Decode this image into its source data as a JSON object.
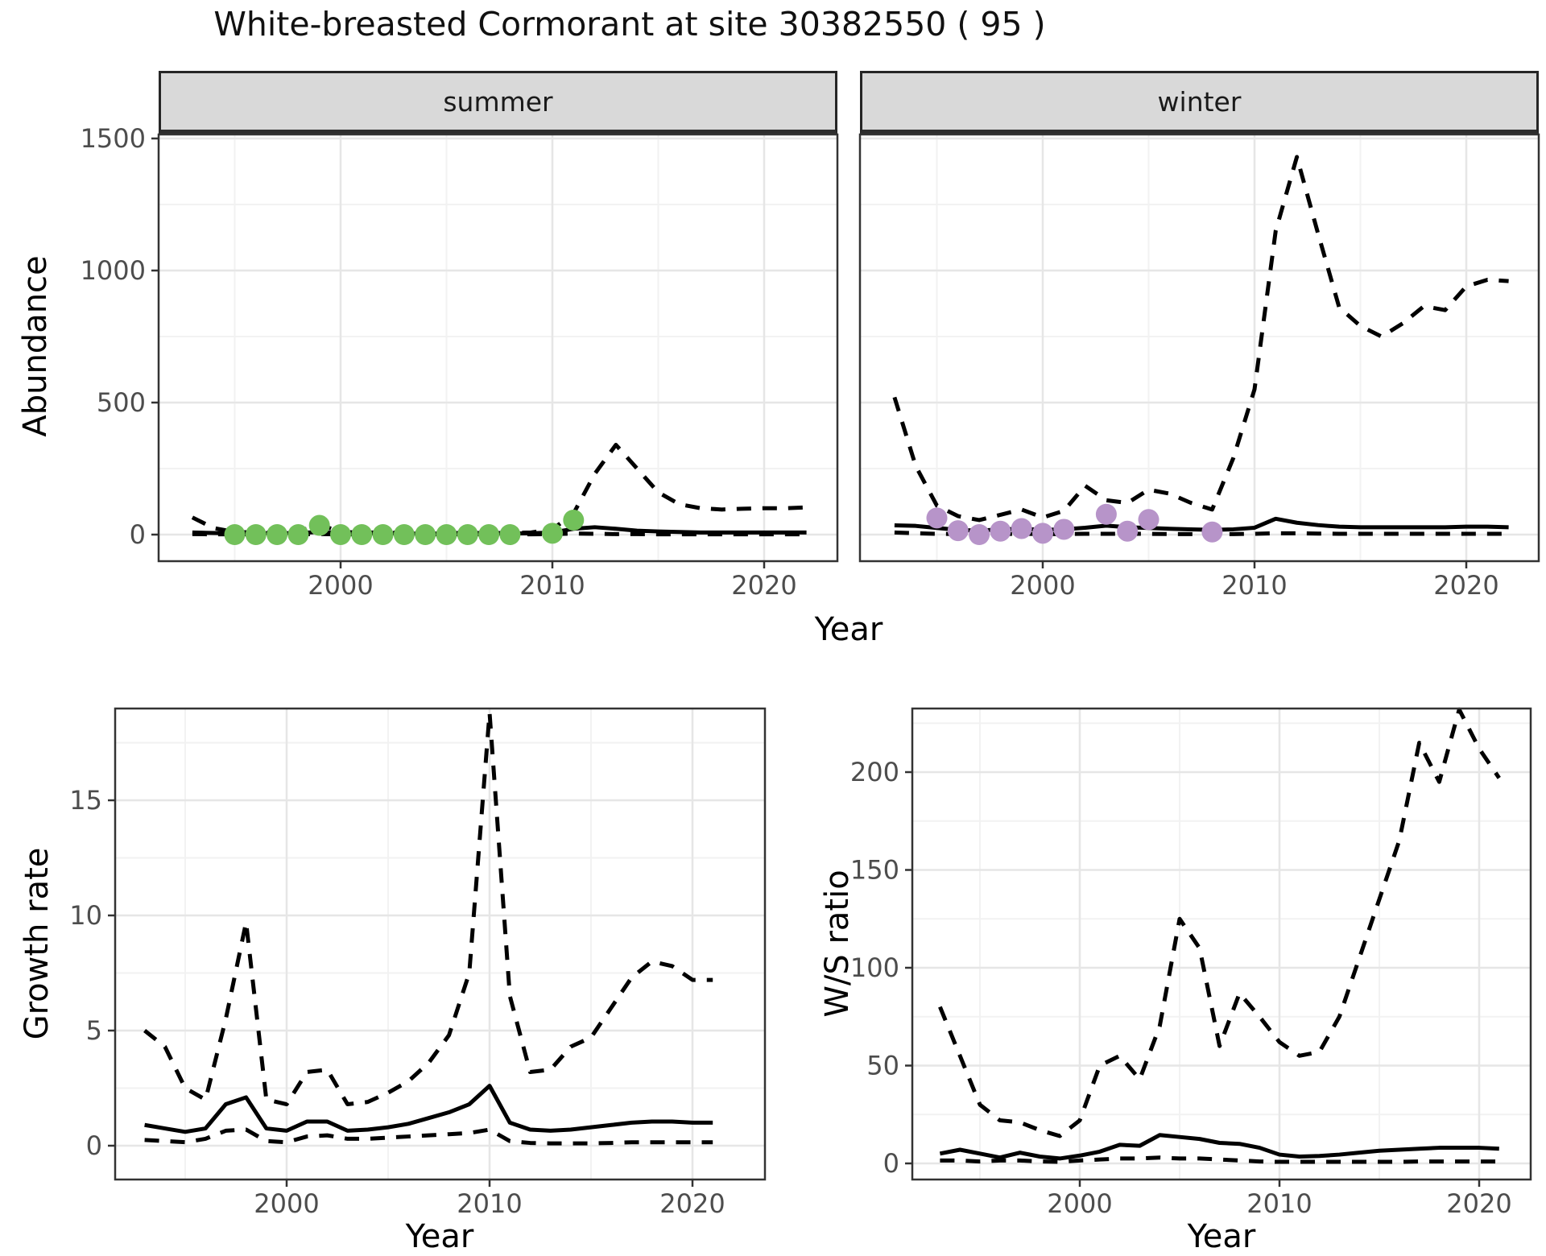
{
  "header": {
    "title": "White-breasted Cormorant at site 30382550 ( 95 )"
  },
  "colors": {
    "summer_point": "#72c05a",
    "winter_point": "#b794c9",
    "line": "#000000",
    "strip_bg": "#d9d9d9",
    "panel_border": "#333333",
    "grid_major": "#e6e6e6",
    "grid_minor": "#f2f2f2",
    "tick_label": "#4d4d4d"
  },
  "chart_data": [
    {
      "type": "line",
      "facet": "summer",
      "ylabel": "Abundance",
      "xlabel": "Year",
      "ylim": [
        0,
        1500
      ],
      "y_ticks": [
        0,
        500,
        1000,
        1500
      ],
      "x_ticks": [
        2000,
        2010,
        2020
      ],
      "grid": "on",
      "legend": "none",
      "x": [
        1993,
        1994,
        1995,
        1996,
        1997,
        1998,
        1999,
        2000,
        2001,
        2002,
        2003,
        2004,
        2005,
        2006,
        2007,
        2008,
        2009,
        2010,
        2011,
        2012,
        2013,
        2014,
        2015,
        2016,
        2017,
        2018,
        2019,
        2020,
        2021,
        2022
      ],
      "series": [
        {
          "name": "upper-95ci",
          "style": "dashed",
          "values": [
            65,
            25,
            10,
            8,
            8,
            12,
            38,
            10,
            8,
            8,
            7,
            6,
            6,
            6,
            6,
            6,
            8,
            20,
            80,
            230,
            340,
            250,
            160,
            115,
            100,
            95,
            98,
            100,
            100,
            103
          ]
        },
        {
          "name": "median",
          "style": "solid",
          "values": [
            8,
            6,
            5,
            5,
            5,
            6,
            10,
            5,
            5,
            5,
            4,
            4,
            4,
            4,
            4,
            4,
            5,
            8,
            22,
            28,
            22,
            15,
            12,
            10,
            8,
            8,
            8,
            8,
            8,
            8
          ]
        },
        {
          "name": "lower-95ci",
          "style": "dashed",
          "values": [
            2,
            1,
            1,
            1,
            1,
            1,
            2,
            1,
            1,
            1,
            1,
            1,
            1,
            1,
            1,
            1,
            1,
            2,
            4,
            3,
            2,
            2,
            1,
            1,
            1,
            1,
            1,
            1,
            1,
            1
          ]
        }
      ],
      "observations": {
        "color_key": "summer_point",
        "points": [
          [
            1995,
            0
          ],
          [
            1996,
            0
          ],
          [
            1997,
            0
          ],
          [
            1998,
            0
          ],
          [
            1999,
            35
          ],
          [
            2000,
            0
          ],
          [
            2001,
            0
          ],
          [
            2002,
            0
          ],
          [
            2003,
            0
          ],
          [
            2004,
            0
          ],
          [
            2005,
            0
          ],
          [
            2006,
            0
          ],
          [
            2007,
            0
          ],
          [
            2008,
            0
          ],
          [
            2010,
            5
          ],
          [
            2011,
            55
          ]
        ]
      }
    },
    {
      "type": "line",
      "facet": "winter",
      "ylabel": "Abundance",
      "xlabel": "Year",
      "ylim": [
        0,
        1500
      ],
      "y_ticks": [
        0,
        500,
        1000,
        1500
      ],
      "x_ticks": [
        2000,
        2010,
        2020
      ],
      "grid": "on",
      "legend": "none",
      "x": [
        1993,
        1994,
        1995,
        1996,
        1997,
        1998,
        1999,
        2000,
        2001,
        2002,
        2003,
        2004,
        2005,
        2006,
        2007,
        2008,
        2009,
        2010,
        2011,
        2012,
        2013,
        2014,
        2015,
        2016,
        2017,
        2018,
        2019,
        2020,
        2021,
        2022
      ],
      "series": [
        {
          "name": "upper-95ci",
          "style": "dashed",
          "values": [
            520,
            260,
            110,
            70,
            55,
            75,
            95,
            65,
            90,
            185,
            130,
            120,
            170,
            155,
            120,
            95,
            290,
            550,
            1150,
            1430,
            1140,
            860,
            790,
            750,
            800,
            865,
            850,
            940,
            965,
            960
          ]
        },
        {
          "name": "median",
          "style": "solid",
          "values": [
            35,
            33,
            25,
            18,
            15,
            20,
            22,
            18,
            20,
            26,
            34,
            28,
            25,
            22,
            20,
            18,
            20,
            26,
            60,
            45,
            36,
            30,
            28,
            28,
            28,
            28,
            28,
            30,
            30,
            28
          ]
        },
        {
          "name": "lower-95ci",
          "style": "dashed",
          "values": [
            8,
            5,
            3,
            2,
            2,
            2,
            3,
            2,
            2,
            3,
            3,
            3,
            3,
            2,
            2,
            2,
            2,
            3,
            5,
            5,
            4,
            3,
            3,
            3,
            3,
            3,
            3,
            3,
            3,
            3
          ]
        }
      ],
      "observations": {
        "color_key": "winter_point",
        "points": [
          [
            1995,
            63
          ],
          [
            1996,
            15
          ],
          [
            1997,
            0
          ],
          [
            1998,
            13
          ],
          [
            1999,
            23
          ],
          [
            2000,
            5
          ],
          [
            2001,
            20
          ],
          [
            2003,
            77
          ],
          [
            2004,
            13
          ],
          [
            2005,
            57
          ],
          [
            2008,
            10
          ]
        ]
      }
    },
    {
      "type": "line",
      "ylabel": "Growth rate",
      "xlabel": "Year",
      "ylim": [
        0,
        19
      ],
      "y_ticks": [
        0,
        5,
        10,
        15
      ],
      "x_ticks": [
        2000,
        2010,
        2020
      ],
      "grid": "on",
      "legend": "none",
      "x": [
        1993,
        1994,
        1995,
        1996,
        1997,
        1998,
        1999,
        2000,
        2001,
        2002,
        2003,
        2004,
        2005,
        2006,
        2007,
        2008,
        2009,
        2010,
        2011,
        2012,
        2013,
        2014,
        2015,
        2016,
        2017,
        2018,
        2019,
        2020,
        2021
      ],
      "series": [
        {
          "name": "upper-95ci",
          "style": "dashed",
          "values": [
            5.0,
            4.3,
            2.5,
            2.0,
            5.5,
            9.7,
            2.0,
            1.8,
            3.2,
            3.3,
            1.8,
            1.9,
            2.3,
            2.8,
            3.6,
            4.8,
            7.5,
            18.8,
            6.5,
            3.2,
            3.3,
            4.3,
            4.7,
            6.0,
            7.3,
            8.0,
            7.8,
            7.2,
            7.2
          ]
        },
        {
          "name": "median",
          "style": "solid",
          "values": [
            0.9,
            0.75,
            0.6,
            0.75,
            1.8,
            2.1,
            0.75,
            0.65,
            1.05,
            1.05,
            0.65,
            0.7,
            0.8,
            0.95,
            1.2,
            1.45,
            1.8,
            2.6,
            1.0,
            0.7,
            0.65,
            0.7,
            0.8,
            0.9,
            1.0,
            1.05,
            1.05,
            1.0,
            1.0
          ]
        },
        {
          "name": "lower-95ci",
          "style": "dashed",
          "values": [
            0.25,
            0.2,
            0.15,
            0.3,
            0.65,
            0.7,
            0.2,
            0.15,
            0.4,
            0.45,
            0.3,
            0.3,
            0.35,
            0.4,
            0.45,
            0.5,
            0.55,
            0.7,
            0.2,
            0.12,
            0.1,
            0.1,
            0.1,
            0.12,
            0.15,
            0.15,
            0.15,
            0.15,
            0.15
          ]
        }
      ]
    },
    {
      "type": "line",
      "ylabel": "W/S ratio",
      "xlabel": "Year",
      "ylim": [
        0,
        232
      ],
      "y_ticks": [
        0,
        50,
        100,
        150,
        200
      ],
      "x_ticks": [
        2000,
        2010,
        2020
      ],
      "grid": "on",
      "legend": "none",
      "x": [
        1993,
        1994,
        1995,
        1996,
        1997,
        1998,
        1999,
        2000,
        2001,
        2002,
        2003,
        2004,
        2005,
        2006,
        2007,
        2008,
        2009,
        2010,
        2011,
        2012,
        2013,
        2014,
        2015,
        2016,
        2017,
        2018,
        2019,
        2020,
        2021
      ],
      "series": [
        {
          "name": "upper-95ci",
          "style": "dashed",
          "values": [
            80,
            55,
            30,
            22,
            21,
            17,
            14,
            22,
            50,
            55,
            43,
            70,
            125,
            110,
            60,
            87,
            75,
            62,
            55,
            57,
            75,
            105,
            135,
            165,
            215,
            195,
            232,
            212,
            197
          ]
        },
        {
          "name": "median",
          "style": "solid",
          "values": [
            5,
            7,
            5,
            3,
            5.5,
            3.5,
            2.5,
            4,
            6,
            9.5,
            9,
            14.5,
            13.5,
            12.5,
            10.5,
            10,
            8,
            4.5,
            3.5,
            3.8,
            4.5,
            5.5,
            6.5,
            7,
            7.5,
            8,
            8,
            8,
            7.5
          ]
        },
        {
          "name": "lower-95ci",
          "style": "dashed",
          "values": [
            1.5,
            1.5,
            1,
            1.5,
            1.5,
            1,
            0.8,
            1.5,
            2,
            2.5,
            2.5,
            3,
            2.5,
            2.5,
            2,
            1.5,
            1,
            0.8,
            0.8,
            0.8,
            0.8,
            0.8,
            0.8,
            0.8,
            1,
            1,
            1,
            1,
            1
          ]
        }
      ]
    }
  ]
}
